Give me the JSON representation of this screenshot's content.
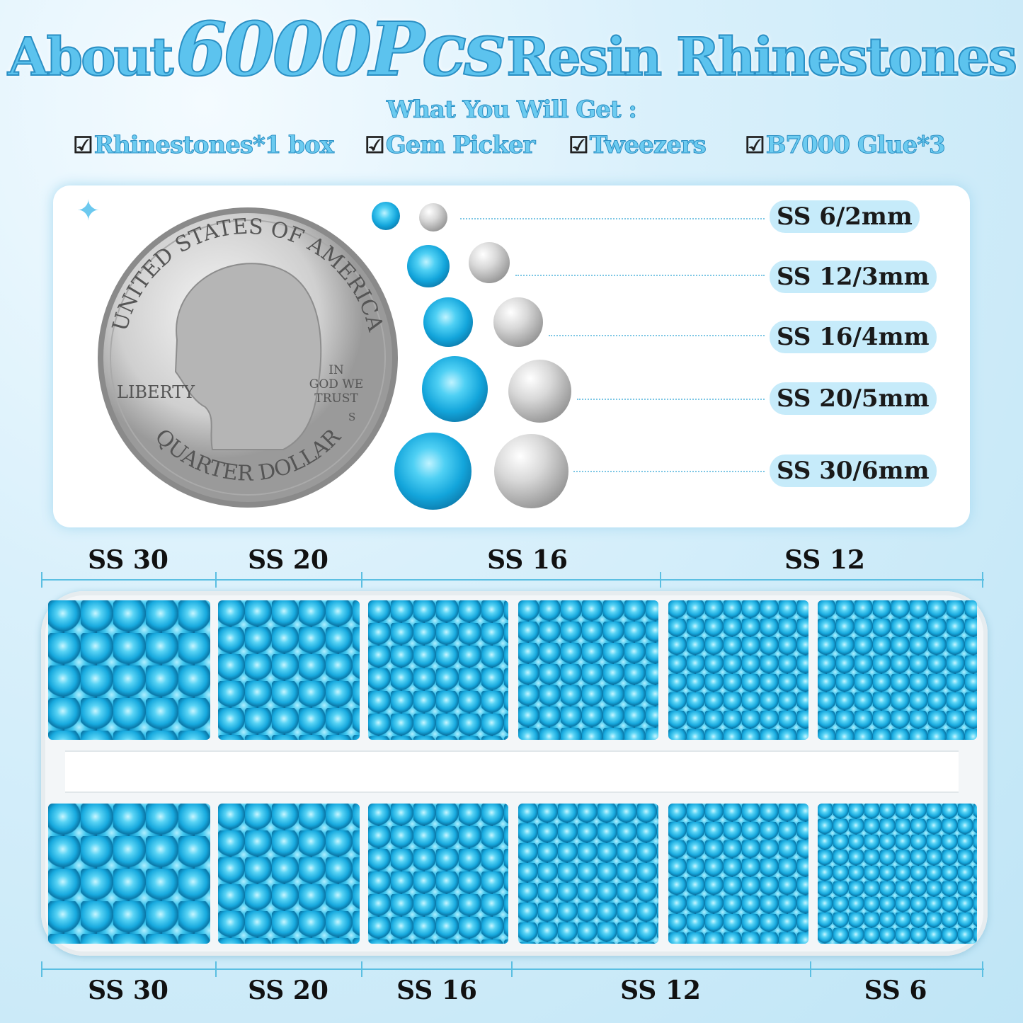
{
  "header": {
    "title_prefix": "About",
    "title_count": "6000Pcs",
    "title_suffix": "Resin Rhinestones",
    "subtitle": "What You Will Get :"
  },
  "package_items": [
    {
      "icon": "checkbox-checked-icon",
      "label": "Rhinestones*1 box"
    },
    {
      "icon": "checkbox-checked-icon",
      "label": "Gem Picker"
    },
    {
      "icon": "checkbox-checked-icon",
      "label": "Tweezers"
    },
    {
      "icon": "checkbox-checked-icon",
      "label": "B7000 Glue*3"
    }
  ],
  "coin": {
    "lettering": [
      "UNITED STATES OF AMERICA",
      "LIBERTY",
      "IN GOD WE TRUST",
      "QUARTER DOLLAR",
      "S"
    ]
  },
  "sizes": [
    "SS 6/2mm",
    "SS 12/3mm",
    "SS 16/4mm",
    "SS 20/5mm",
    "SS 30/6mm"
  ],
  "tray_top_labels": [
    "SS 30",
    "SS 20",
    "SS 16",
    "SS 12"
  ],
  "tray_bottom_labels": [
    "SS 30",
    "SS 20",
    "SS 16",
    "SS 12",
    "SS 6"
  ],
  "colors": {
    "gem": "#13a5db",
    "title": "#5cc3ee",
    "pill": "#c6ebfa"
  }
}
